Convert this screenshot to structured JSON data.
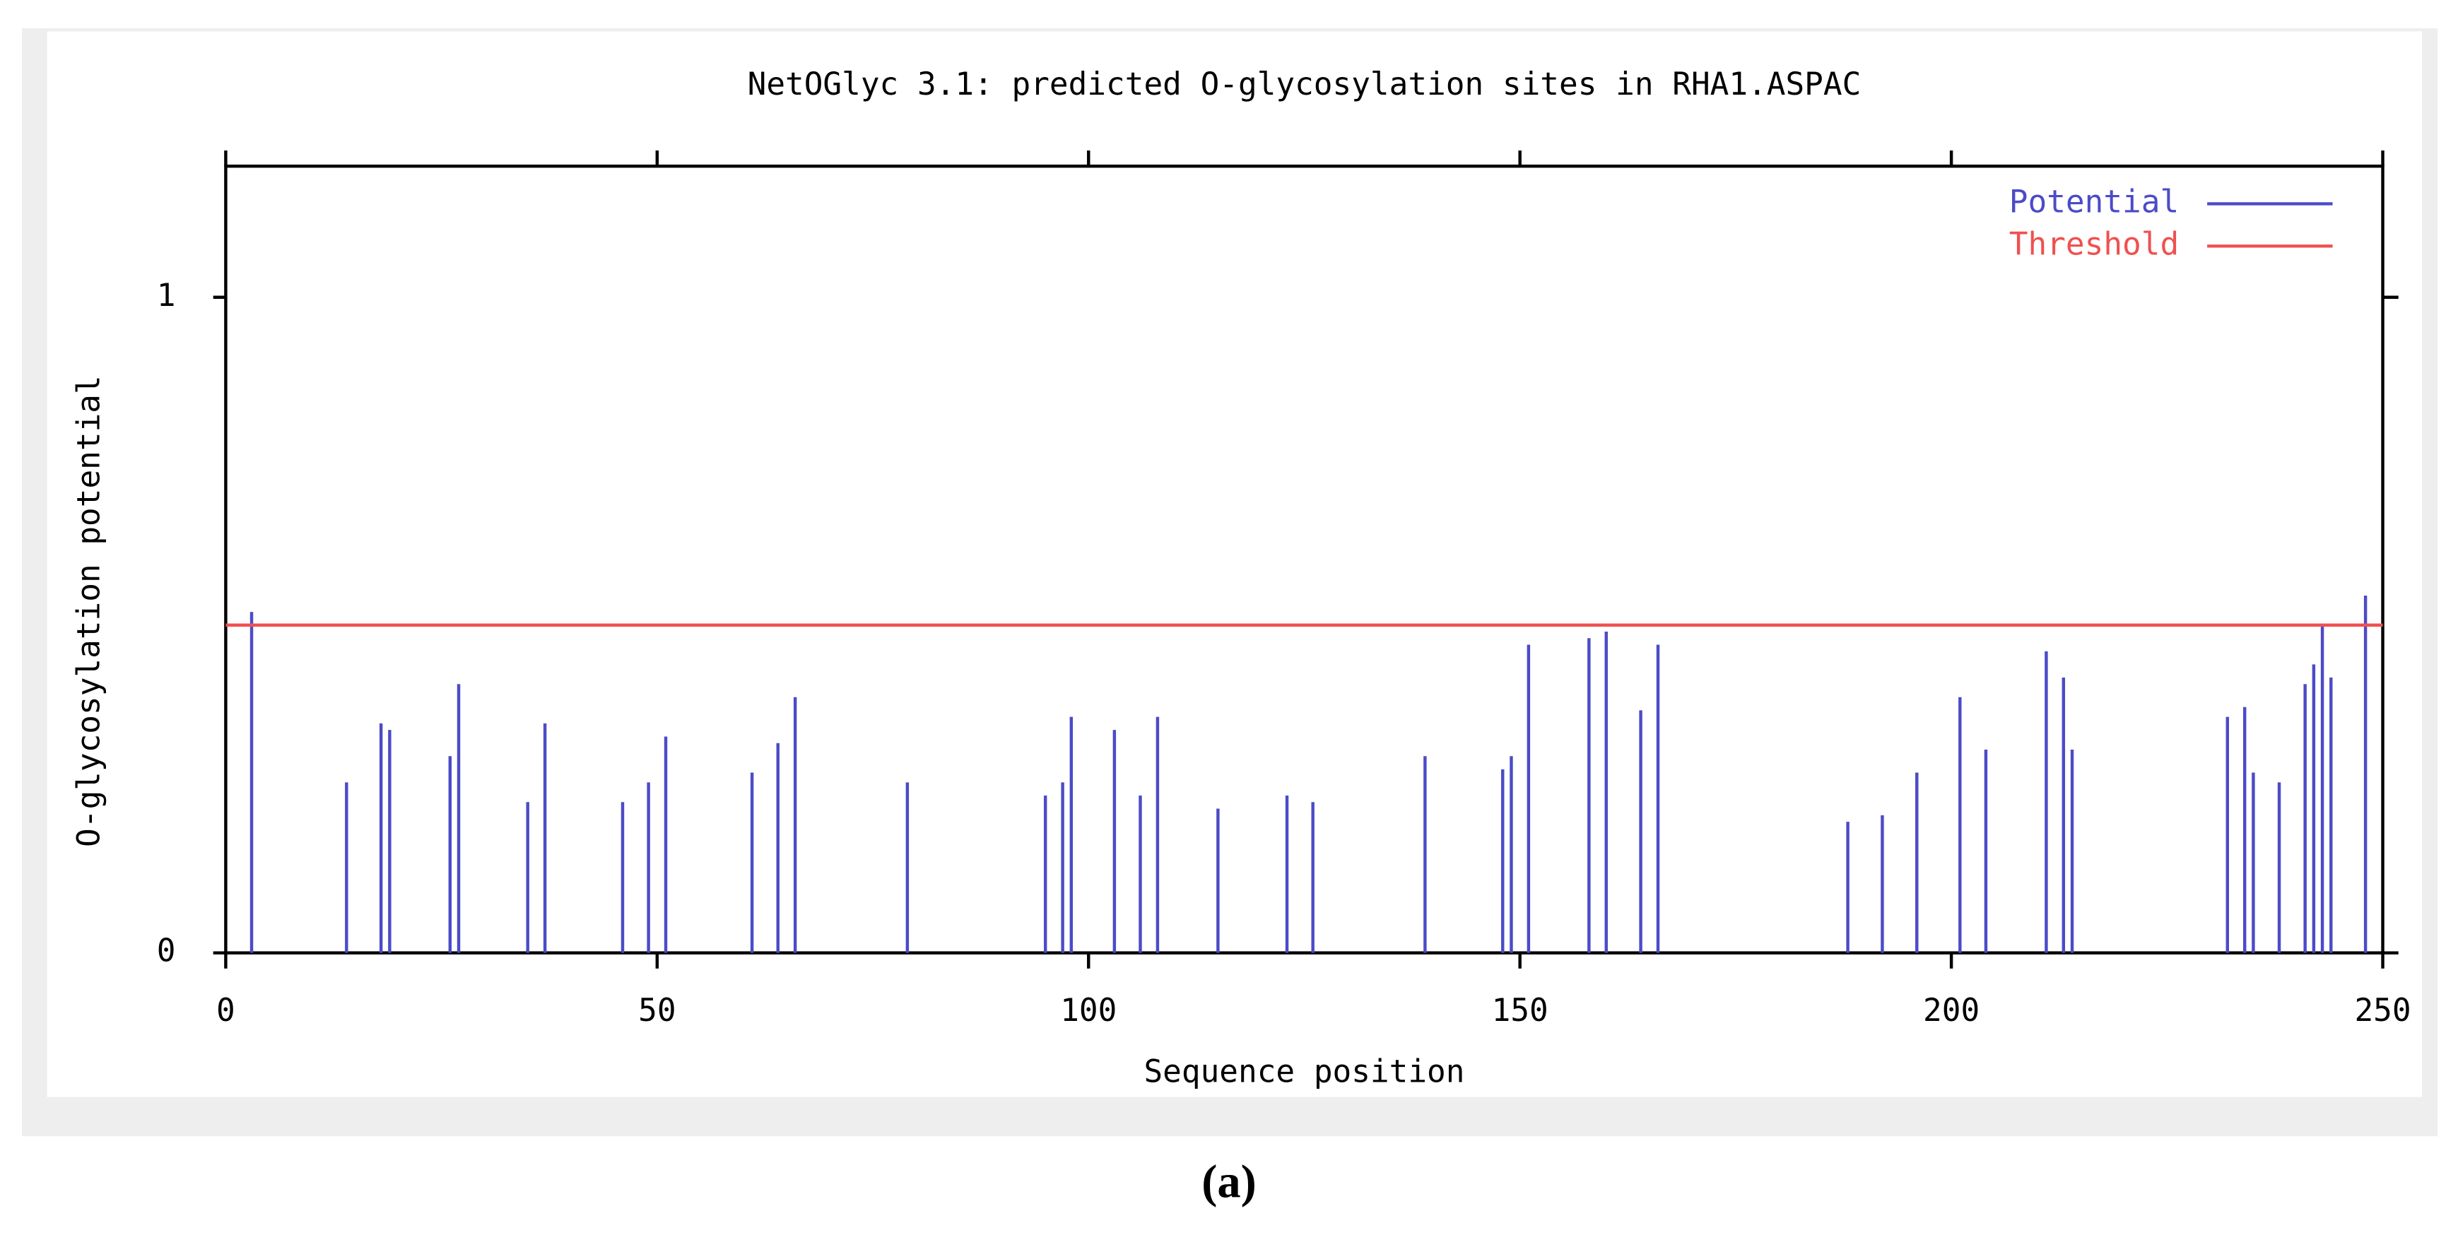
{
  "chart_data": {
    "type": "bar",
    "title": "NetOGlyc 3.1: predicted O-glycosylation sites in RHA1.ASPAC",
    "x_label": "Sequence position",
    "y_label": "O-glycosylation potential",
    "caption": "(a)",
    "x": [
      3,
      14,
      18,
      19,
      26,
      27,
      35,
      37,
      46,
      49,
      51,
      61,
      64,
      66,
      79,
      95,
      97,
      98,
      103,
      106,
      108,
      115,
      123,
      126,
      139,
      148,
      149,
      151,
      158,
      160,
      164,
      166,
      188,
      192,
      196,
      201,
      204,
      211,
      213,
      214,
      232,
      234,
      235,
      238,
      241,
      242,
      243,
      244,
      248
    ],
    "series": [
      {
        "name": "Potential",
        "color": "#4b4bc8",
        "values": [
          0.52,
          0.26,
          0.35,
          0.34,
          0.3,
          0.41,
          0.23,
          0.35,
          0.23,
          0.26,
          0.33,
          0.275,
          0.32,
          0.39,
          0.26,
          0.24,
          0.26,
          0.36,
          0.34,
          0.24,
          0.36,
          0.22,
          0.24,
          0.23,
          0.3,
          0.28,
          0.3,
          0.47,
          0.48,
          0.49,
          0.37,
          0.47,
          0.2,
          0.21,
          0.275,
          0.39,
          0.31,
          0.46,
          0.42,
          0.31,
          0.36,
          0.375,
          0.275,
          0.26,
          0.41,
          0.44,
          0.5,
          0.42,
          0.545
        ]
      }
    ],
    "threshold": {
      "name": "Threshold",
      "color": "#f05050",
      "value": 0.5
    },
    "xlim": [
      0,
      250
    ],
    "xticks": [
      0,
      50,
      100,
      150,
      200,
      250
    ],
    "ylim": [
      0,
      1.2
    ],
    "yticks": [
      0,
      1
    ],
    "legend": "upper right"
  }
}
